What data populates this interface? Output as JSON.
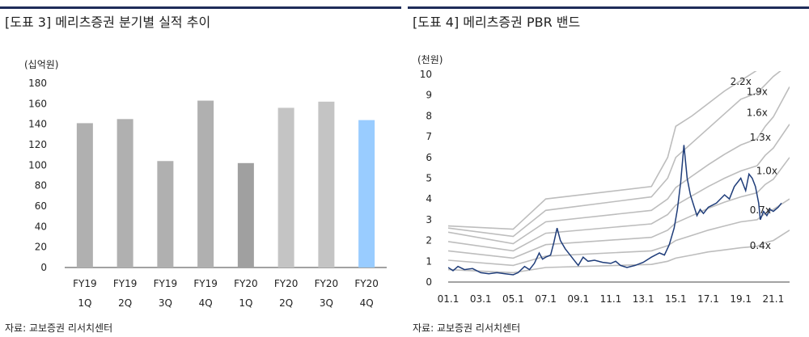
{
  "left_panel": {
    "title": "[도표 3] 메리츠증권 분기별 실적 추이",
    "source": "자료: 교보증권 리서치센터"
  },
  "right_panel": {
    "title": "[도표 4] 메리츠증권 PBR 밴드",
    "source": "자료: 교보증권 리서치센터"
  },
  "chart_data": [
    {
      "type": "bar",
      "title": "",
      "unit_label": "(십억원)",
      "categories": [
        "FY19\n1Q",
        "FY19\n2Q",
        "FY19\n3Q",
        "FY19\n4Q",
        "FY20\n1Q",
        "FY20\n2Q",
        "FY20\n3Q",
        "FY20\n4Q"
      ],
      "values": [
        141,
        145,
        104,
        163,
        102,
        156,
        162,
        144
      ],
      "bar_colors": [
        "#b0b0b0",
        "#b0b0b0",
        "#b0b0b0",
        "#b0b0b0",
        "#a0a0a0",
        "#c4c4c4",
        "#c4c4c4",
        "#99ccff"
      ],
      "ylim": [
        0,
        180
      ],
      "yticks": [
        0,
        20,
        40,
        60,
        80,
        100,
        120,
        140,
        160,
        180
      ],
      "grid": false
    },
    {
      "type": "line",
      "title": "",
      "unit_label": "(천원)",
      "ylim": [
        0,
        10
      ],
      "yticks": [
        0,
        1,
        2,
        3,
        4,
        5,
        6,
        7,
        8,
        9,
        10
      ],
      "xlim": [
        2001.0,
        2022.0
      ],
      "xticks": [
        "01.1",
        "03.1",
        "05.1",
        "07.1",
        "09.1",
        "11.1",
        "13.1",
        "15.1",
        "17.1",
        "19.1",
        "21.1"
      ],
      "price_color": "#1f3d7a",
      "band_color": "#bdbdbd",
      "bands": [
        {
          "label": "0.4x",
          "points": [
            [
              2001.0,
              0.6
            ],
            [
              2005.0,
              0.45
            ],
            [
              2007.0,
              0.7
            ],
            [
              2013.5,
              0.85
            ],
            [
              2014.5,
              1.0
            ],
            [
              2015.0,
              1.15
            ],
            [
              2016.0,
              1.3
            ],
            [
              2017.0,
              1.45
            ],
            [
              2018.0,
              1.55
            ],
            [
              2019.0,
              1.65
            ],
            [
              2020.0,
              1.72
            ],
            [
              2020.5,
              1.9
            ],
            [
              2021.0,
              2.0
            ],
            [
              2022.0,
              2.5
            ]
          ]
        },
        {
          "label": "0.7x",
          "points": [
            [
              2001.0,
              1.05
            ],
            [
              2005.0,
              0.8
            ],
            [
              2007.0,
              1.25
            ],
            [
              2013.5,
              1.5
            ],
            [
              2014.5,
              1.75
            ],
            [
              2015.0,
              2.0
            ],
            [
              2016.0,
              2.25
            ],
            [
              2017.0,
              2.5
            ],
            [
              2018.0,
              2.7
            ],
            [
              2019.0,
              2.9
            ],
            [
              2020.0,
              3.0
            ],
            [
              2020.5,
              3.3
            ],
            [
              2021.0,
              3.5
            ],
            [
              2022.0,
              4.0
            ]
          ]
        },
        {
          "label": "1.0x",
          "points": [
            [
              2001.0,
              1.5
            ],
            [
              2005.0,
              1.15
            ],
            [
              2007.0,
              1.8
            ],
            [
              2013.5,
              2.15
            ],
            [
              2014.5,
              2.5
            ],
            [
              2015.0,
              2.85
            ],
            [
              2016.0,
              3.2
            ],
            [
              2017.0,
              3.55
            ],
            [
              2018.0,
              3.85
            ],
            [
              2019.0,
              4.1
            ],
            [
              2020.0,
              4.3
            ],
            [
              2020.5,
              4.7
            ],
            [
              2021.0,
              4.95
            ],
            [
              2022.0,
              6.0
            ]
          ]
        },
        {
          "label": "1.3x",
          "points": [
            [
              2001.0,
              1.95
            ],
            [
              2005.0,
              1.5
            ],
            [
              2007.0,
              2.35
            ],
            [
              2013.5,
              2.8
            ],
            [
              2014.5,
              3.25
            ],
            [
              2015.0,
              3.7
            ],
            [
              2016.0,
              4.15
            ],
            [
              2017.0,
              4.6
            ],
            [
              2018.0,
              5.0
            ],
            [
              2019.0,
              5.35
            ],
            [
              2020.0,
              5.6
            ],
            [
              2020.5,
              6.1
            ],
            [
              2021.0,
              6.45
            ],
            [
              2022.0,
              7.6
            ]
          ]
        },
        {
          "label": "1.6x",
          "points": [
            [
              2001.0,
              2.4
            ],
            [
              2005.0,
              1.85
            ],
            [
              2007.0,
              2.9
            ],
            [
              2013.5,
              3.45
            ],
            [
              2014.5,
              4.0
            ],
            [
              2015.0,
              4.55
            ],
            [
              2016.0,
              5.1
            ],
            [
              2017.0,
              5.65
            ],
            [
              2018.0,
              6.15
            ],
            [
              2019.0,
              6.6
            ],
            [
              2020.0,
              6.9
            ],
            [
              2020.5,
              7.5
            ],
            [
              2021.0,
              7.95
            ],
            [
              2022.0,
              9.4
            ]
          ]
        },
        {
          "label": "1.9x",
          "points": [
            [
              2001.0,
              2.6
            ],
            [
              2005.0,
              2.2
            ],
            [
              2007.0,
              3.45
            ],
            [
              2013.5,
              4.1
            ],
            [
              2014.5,
              5.0
            ],
            [
              2015.0,
              6.0
            ],
            [
              2016.0,
              6.7
            ],
            [
              2017.0,
              7.4
            ],
            [
              2018.0,
              8.1
            ],
            [
              2019.0,
              8.8
            ],
            [
              2020.0,
              9.1
            ],
            [
              2020.5,
              9.5
            ],
            [
              2021.0,
              9.9
            ],
            [
              2022.0,
              10.5
            ]
          ]
        },
        {
          "label": "2.2x",
          "points": [
            [
              2001.0,
              2.7
            ],
            [
              2005.0,
              2.55
            ],
            [
              2007.0,
              4.0
            ],
            [
              2013.5,
              4.6
            ],
            [
              2014.5,
              6.0
            ],
            [
              2015.0,
              7.5
            ],
            [
              2016.0,
              8.0
            ],
            [
              2017.0,
              8.6
            ],
            [
              2018.0,
              9.2
            ],
            [
              2019.0,
              9.7
            ],
            [
              2020.0,
              10.2
            ],
            [
              2021.0,
              10.5
            ]
          ]
        }
      ],
      "price": [
        [
          2001.0,
          0.7
        ],
        [
          2001.3,
          0.55
        ],
        [
          2001.6,
          0.75
        ],
        [
          2002.0,
          0.6
        ],
        [
          2002.5,
          0.65
        ],
        [
          2003.0,
          0.45
        ],
        [
          2003.5,
          0.4
        ],
        [
          2004.0,
          0.45
        ],
        [
          2004.5,
          0.4
        ],
        [
          2005.0,
          0.35
        ],
        [
          2005.3,
          0.45
        ],
        [
          2005.7,
          0.75
        ],
        [
          2006.0,
          0.6
        ],
        [
          2006.3,
          0.9
        ],
        [
          2006.6,
          1.4
        ],
        [
          2006.8,
          1.1
        ],
        [
          2007.0,
          1.2
        ],
        [
          2007.3,
          1.3
        ],
        [
          2007.5,
          1.9
        ],
        [
          2007.7,
          2.6
        ],
        [
          2007.9,
          2.0
        ],
        [
          2008.2,
          1.6
        ],
        [
          2008.5,
          1.3
        ],
        [
          2008.8,
          1.0
        ],
        [
          2009.0,
          0.8
        ],
        [
          2009.3,
          1.2
        ],
        [
          2009.6,
          1.0
        ],
        [
          2010.0,
          1.05
        ],
        [
          2010.5,
          0.95
        ],
        [
          2011.0,
          0.9
        ],
        [
          2011.3,
          1.0
        ],
        [
          2011.6,
          0.8
        ],
        [
          2012.0,
          0.7
        ],
        [
          2012.5,
          0.8
        ],
        [
          2013.0,
          0.95
        ],
        [
          2013.5,
          1.2
        ],
        [
          2014.0,
          1.4
        ],
        [
          2014.3,
          1.3
        ],
        [
          2014.6,
          1.8
        ],
        [
          2014.9,
          2.6
        ],
        [
          2015.1,
          3.5
        ],
        [
          2015.3,
          4.8
        ],
        [
          2015.5,
          6.6
        ],
        [
          2015.7,
          5.0
        ],
        [
          2015.9,
          4.2
        ],
        [
          2016.1,
          3.7
        ],
        [
          2016.3,
          3.2
        ],
        [
          2016.5,
          3.5
        ],
        [
          2016.7,
          3.3
        ],
        [
          2017.0,
          3.6
        ],
        [
          2017.5,
          3.8
        ],
        [
          2018.0,
          4.2
        ],
        [
          2018.3,
          4.0
        ],
        [
          2018.6,
          4.6
        ],
        [
          2019.0,
          5.0
        ],
        [
          2019.3,
          4.4
        ],
        [
          2019.5,
          5.2
        ],
        [
          2019.7,
          5.0
        ],
        [
          2019.9,
          4.6
        ],
        [
          2020.1,
          3.8
        ],
        [
          2020.2,
          3.0
        ],
        [
          2020.4,
          3.4
        ],
        [
          2020.6,
          3.2
        ],
        [
          2020.8,
          3.5
        ],
        [
          2021.0,
          3.4
        ],
        [
          2021.3,
          3.6
        ],
        [
          2021.5,
          3.8
        ]
      ]
    }
  ]
}
